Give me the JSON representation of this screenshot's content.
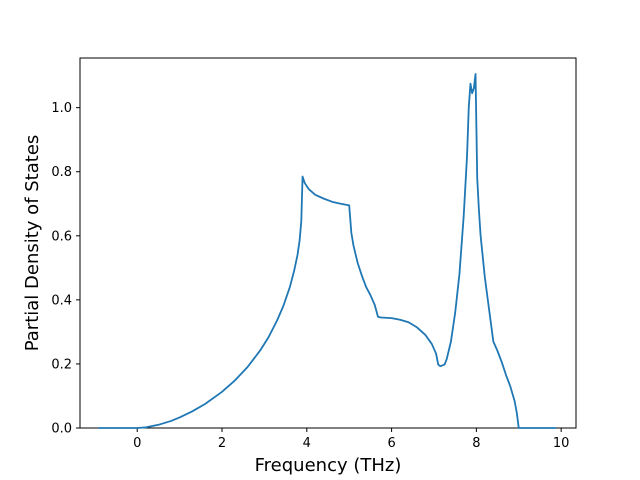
{
  "chart_data": {
    "type": "line",
    "title": "",
    "xlabel": "Frequency (THz)",
    "ylabel": "Partial Density of States",
    "xlim": [
      -1.35,
      10.35
    ],
    "ylim": [
      0.0,
      1.155
    ],
    "xticks": [
      0,
      2,
      4,
      6,
      8,
      10
    ],
    "xtick_labels": [
      "0",
      "2",
      "4",
      "6",
      "8",
      "10"
    ],
    "yticks": [
      0.0,
      0.2,
      0.4,
      0.6,
      0.8,
      1.0
    ],
    "ytick_labels": [
      "0.0",
      "0.2",
      "0.4",
      "0.6",
      "0.8",
      "1.0"
    ],
    "grid": false,
    "line_color": "#1f77b4",
    "series": [
      {
        "x": [
          -0.92,
          0.0,
          0.2,
          0.5,
          0.8,
          1.0,
          1.3,
          1.6,
          2.0,
          2.3,
          2.6,
          2.9,
          3.1,
          3.3,
          3.45,
          3.6,
          3.7,
          3.78,
          3.83,
          3.87,
          3.9,
          3.95,
          4.05,
          4.2,
          4.4,
          4.6,
          4.8,
          5.0,
          5.05,
          5.1,
          5.2,
          5.3,
          5.4,
          5.5,
          5.6,
          5.68,
          5.75,
          6.0,
          6.2,
          6.4,
          6.6,
          6.8,
          6.95,
          7.05,
          7.1,
          7.15,
          7.25,
          7.3,
          7.4,
          7.5,
          7.6,
          7.7,
          7.78,
          7.82,
          7.86,
          7.9,
          7.94,
          7.98,
          8.02,
          8.06,
          8.1,
          8.2,
          8.3,
          8.4,
          8.5,
          8.6,
          8.7,
          8.8,
          8.9,
          8.95,
          9.0,
          9.1,
          9.3,
          9.6,
          9.88
        ],
        "y": [
          0.0,
          0.0,
          0.002,
          0.01,
          0.022,
          0.033,
          0.052,
          0.075,
          0.113,
          0.148,
          0.19,
          0.242,
          0.284,
          0.336,
          0.382,
          0.44,
          0.49,
          0.54,
          0.585,
          0.645,
          0.785,
          0.765,
          0.745,
          0.728,
          0.716,
          0.706,
          0.7,
          0.695,
          0.61,
          0.57,
          0.515,
          0.475,
          0.44,
          0.415,
          0.385,
          0.347,
          0.345,
          0.343,
          0.338,
          0.33,
          0.314,
          0.29,
          0.262,
          0.232,
          0.198,
          0.193,
          0.198,
          0.215,
          0.27,
          0.36,
          0.48,
          0.66,
          0.85,
          1.0,
          1.075,
          1.045,
          1.06,
          1.105,
          0.78,
          0.68,
          0.6,
          0.47,
          0.37,
          0.27,
          0.24,
          0.205,
          0.165,
          0.13,
          0.085,
          0.05,
          0.0,
          0.0,
          0.0,
          0.0,
          0.0
        ]
      }
    ]
  }
}
